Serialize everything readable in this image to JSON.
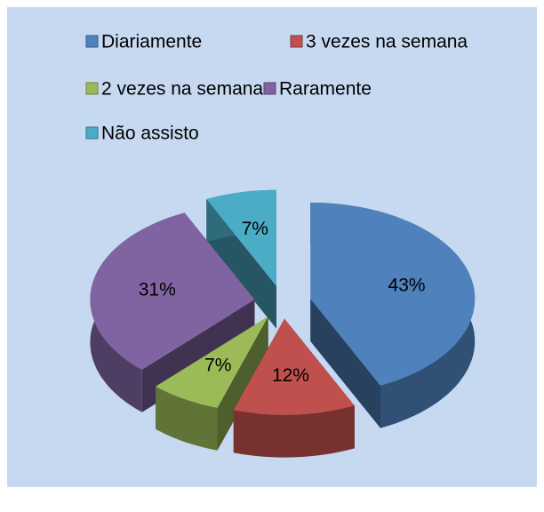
{
  "chart_data": {
    "type": "pie",
    "categories": [
      "Diariamente",
      "3 vezes na semana",
      "2 vezes na semana",
      "Raramente",
      "Não assisto"
    ],
    "values": [
      43,
      12,
      7,
      31,
      7
    ],
    "value_labels": [
      "43%",
      "12%",
      "7%",
      "31%",
      "7%"
    ],
    "colors": [
      "#4f81bd",
      "#c0504d",
      "#9bbb59",
      "#8064a2",
      "#4bacc6"
    ],
    "legend": "top"
  }
}
